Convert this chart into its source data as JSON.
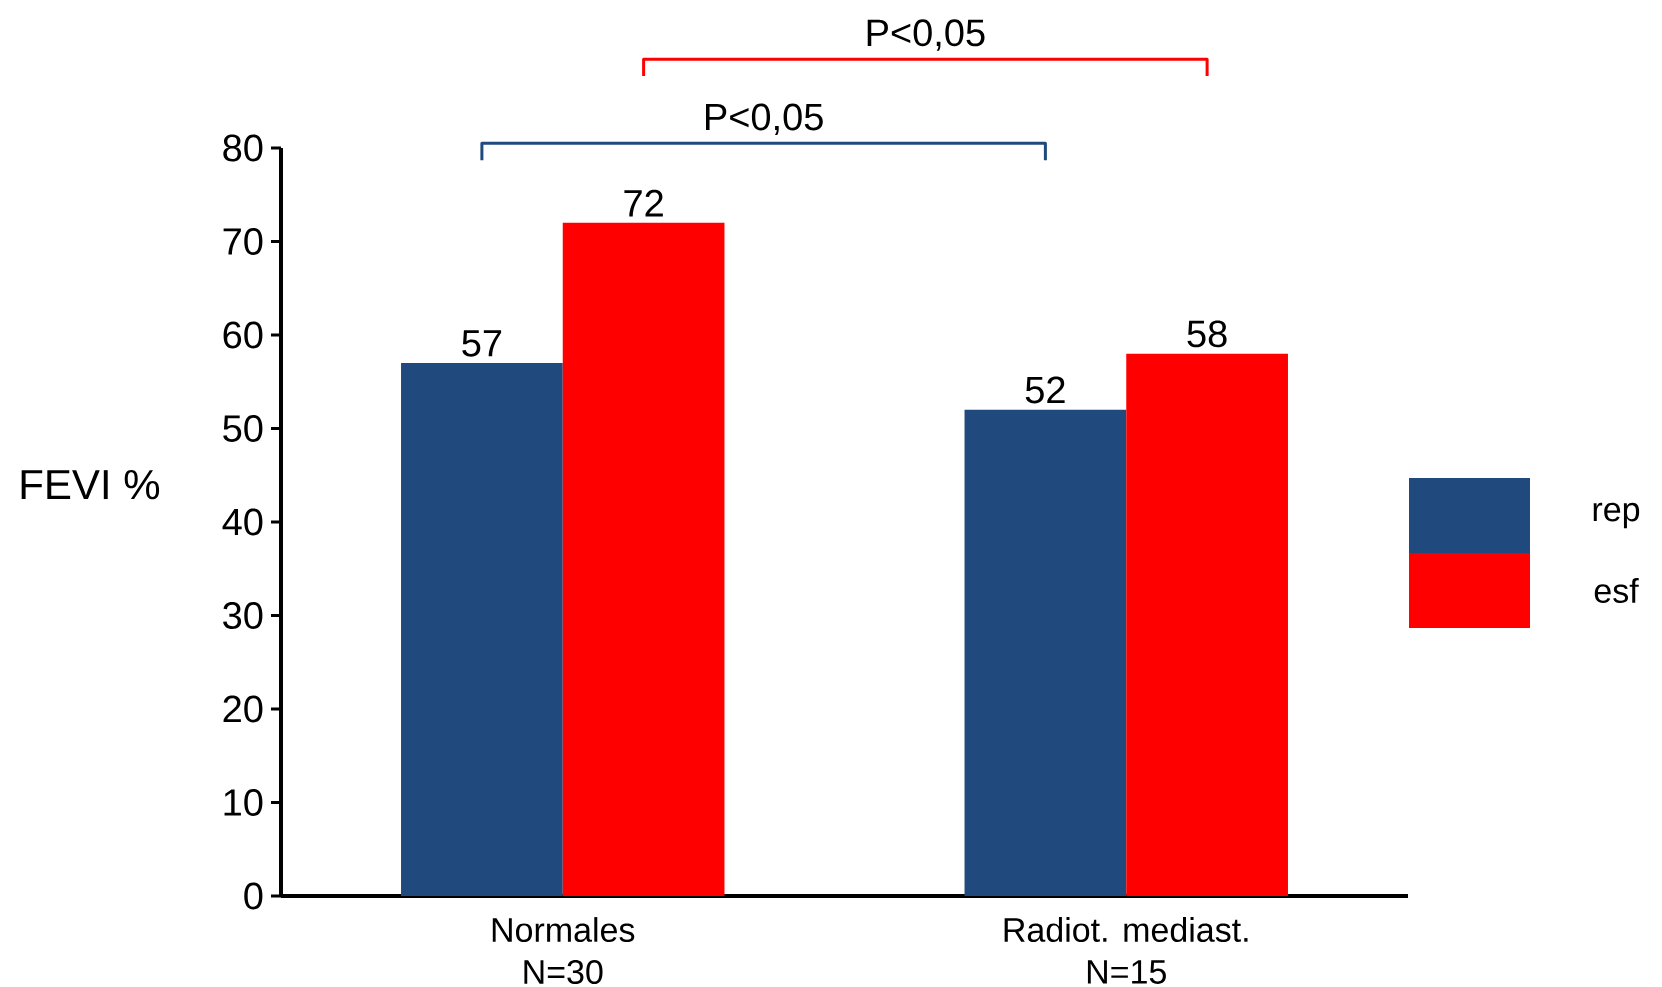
{
  "chart_data": {
    "type": "bar",
    "ylabel": "FEVI %",
    "categories": [
      "Normales",
      "Radiot. mediast."
    ],
    "series": [
      {
        "name": "rep",
        "color": "#204a7e",
        "values": [
          57,
          52
        ]
      },
      {
        "name": "esf",
        "color": "#ff0000",
        "values": [
          72,
          58
        ]
      }
    ],
    "ylim": [
      0,
      80
    ],
    "yticks": [
      0,
      10,
      20,
      30,
      40,
      50,
      60,
      70,
      80
    ],
    "data_labels": true,
    "legend": "right",
    "annotations": [
      "P<0,05",
      "P<0,05",
      "N=30",
      "N=15"
    ]
  }
}
